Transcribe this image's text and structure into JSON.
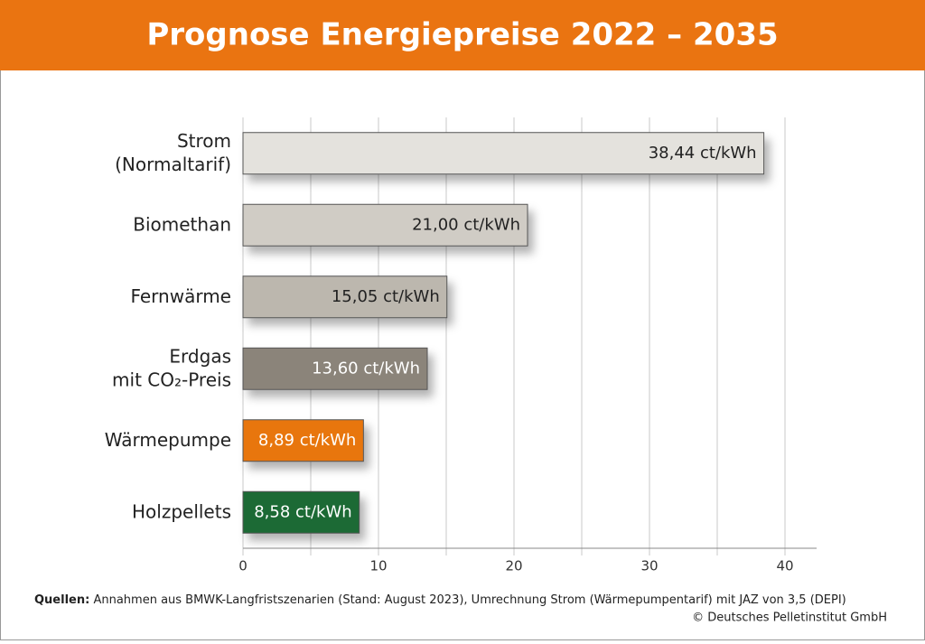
{
  "chart_data": {
    "type": "bar",
    "orientation": "horizontal",
    "title": "Prognose Energiepreise 2022 – 2035",
    "categories": [
      [
        "Strom",
        "(Normaltarif)"
      ],
      [
        "Biomethan"
      ],
      [
        "Fernwärme"
      ],
      [
        "Erdgas",
        "mit CO₂-Preis"
      ],
      [
        "Wärmepumpe"
      ],
      [
        "Holzpellets"
      ]
    ],
    "values": [
      38.44,
      21.0,
      15.05,
      13.6,
      8.89,
      8.58
    ],
    "value_labels": [
      "38,44 ct/kWh",
      "21,00 ct/kWh",
      "15,05 ct/kWh",
      "13,60 ct/kWh",
      "8,89 ct/kWh",
      "8,58 ct/kWh"
    ],
    "colors": [
      "#e4e2dd",
      "#d0ccc5",
      "#bcb7ae",
      "#8b847a",
      "#e8760f",
      "#1d6b35"
    ],
    "xlim": [
      0,
      42
    ],
    "xticks": [
      0,
      10,
      20,
      30,
      40
    ],
    "minor_xticks": [
      5,
      15,
      25,
      35
    ],
    "grid": true,
    "source_label": "Quellen:",
    "source_text": "Annahmen aus BMWK-Langfristszenarien (Stand: August 2023), Umrechnung Strom (Wärmepumpentarif) mit JAZ von 3,5 (DEPI)",
    "copyright": "© Deutsches Pelletinstitut GmbH"
  }
}
